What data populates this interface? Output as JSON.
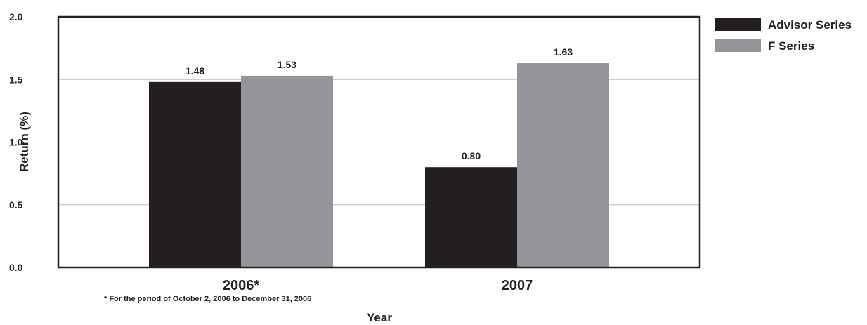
{
  "chart_data": {
    "type": "bar",
    "categories": [
      "2006*",
      "2007"
    ],
    "series": [
      {
        "name": "Advisor Series",
        "values": [
          1.48,
          0.8
        ],
        "color": "#231f20",
        "labels": [
          "1.48",
          "0.80"
        ]
      },
      {
        "name": "F Series",
        "values": [
          1.53,
          1.63
        ],
        "color": "#939598",
        "labels": [
          "1.53",
          "1.63"
        ]
      }
    ],
    "xlabel": "Year",
    "ylabel": "Return (%)",
    "ylim": [
      0,
      2.0
    ],
    "yticks": [
      "0.0",
      "0.5",
      "1.0",
      "1.5",
      "2.0"
    ],
    "footnote": "* For the period of October 2, 2006 to December 31, 2006",
    "grid": true,
    "legend": "top-right"
  }
}
